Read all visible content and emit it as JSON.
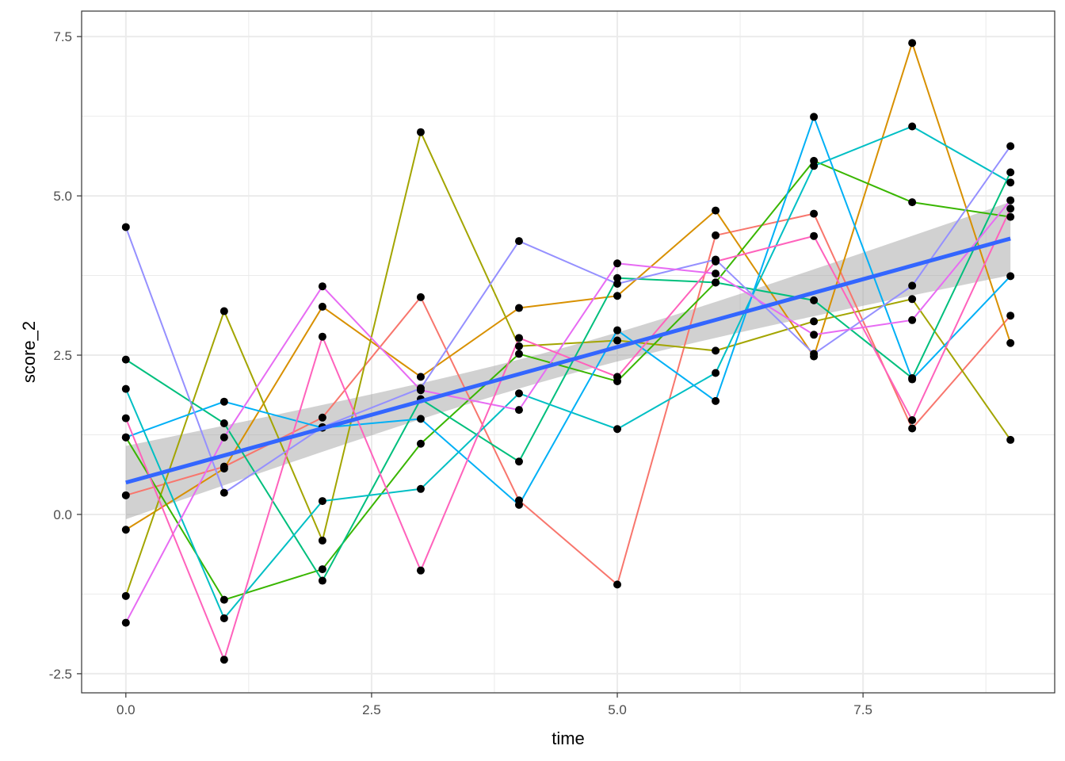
{
  "chart_data": {
    "type": "line",
    "title": "",
    "xlabel": "time",
    "ylabel": "score_2",
    "xlim": [
      -0.45,
      9.45
    ],
    "ylim": [
      -2.8,
      7.9
    ],
    "x_ticks": [
      0.0,
      2.5,
      5.0,
      7.5
    ],
    "x_tick_labels": [
      "0.0",
      "2.5",
      "5.0",
      "7.5"
    ],
    "y_ticks": [
      -2.5,
      0.0,
      2.5,
      5.0,
      7.5
    ],
    "y_tick_labels": [
      "-2.5",
      "0.0",
      "2.5",
      "5.0",
      "7.5"
    ],
    "grid": true,
    "legend": "none",
    "x": [
      0,
      1,
      2,
      3,
      4,
      5,
      6,
      7,
      8,
      9
    ],
    "series": [
      {
        "color": "#F8766D",
        "values": [
          0.3,
          0.75,
          1.52,
          3.41,
          0.22,
          -1.1,
          4.38,
          4.72,
          1.35,
          3.12
        ]
      },
      {
        "color": "#D89000",
        "values": [
          -0.24,
          0.72,
          3.26,
          2.16,
          3.24,
          3.43,
          4.77,
          2.48,
          7.4,
          2.69
        ]
      },
      {
        "color": "#A3A500",
        "values": [
          -1.28,
          3.19,
          -0.41,
          6.0,
          2.64,
          2.73,
          2.57,
          3.03,
          3.38,
          1.17
        ]
      },
      {
        "color": "#39B600",
        "values": [
          1.21,
          -1.34,
          -0.86,
          1.11,
          2.52,
          2.09,
          3.64,
          5.55,
          4.9,
          4.67
        ]
      },
      {
        "color": "#00BF7D",
        "values": [
          2.43,
          1.43,
          -1.04,
          1.81,
          0.83,
          3.71,
          3.64,
          3.36,
          2.14,
          5.37
        ]
      },
      {
        "color": "#00BFC4",
        "values": [
          1.97,
          -1.63,
          0.21,
          0.4,
          1.9,
          1.34,
          2.22,
          5.47,
          6.09,
          5.21
        ]
      },
      {
        "color": "#00B0F6",
        "values": [
          1.21,
          1.77,
          1.36,
          1.5,
          0.15,
          2.89,
          1.78,
          6.24,
          2.12,
          3.74
        ]
      },
      {
        "color": "#9590FF",
        "values": [
          4.51,
          0.34,
          1.37,
          1.98,
          4.29,
          3.62,
          4.0,
          2.52,
          3.59,
          5.78
        ]
      },
      {
        "color": "#E76BF3",
        "values": [
          -1.7,
          1.21,
          3.58,
          1.95,
          1.64,
          3.94,
          3.78,
          2.82,
          3.05,
          4.93
        ]
      },
      {
        "color": "#FF62BC",
        "values": [
          1.51,
          -2.28,
          2.79,
          -0.88,
          2.77,
          2.16,
          3.97,
          4.37,
          1.48,
          4.8
        ]
      }
    ],
    "trend": {
      "method": "lm",
      "color": "#3366FF",
      "x": [
        0,
        9
      ],
      "y": [
        0.5,
        4.33
      ],
      "band_color": "#999999",
      "band_lower": [
        -0.06,
        3.73
      ],
      "band_upper": [
        1.09,
        4.93
      ],
      "band_center_halfwidth": 0.22
    },
    "point_color": "#000000"
  }
}
